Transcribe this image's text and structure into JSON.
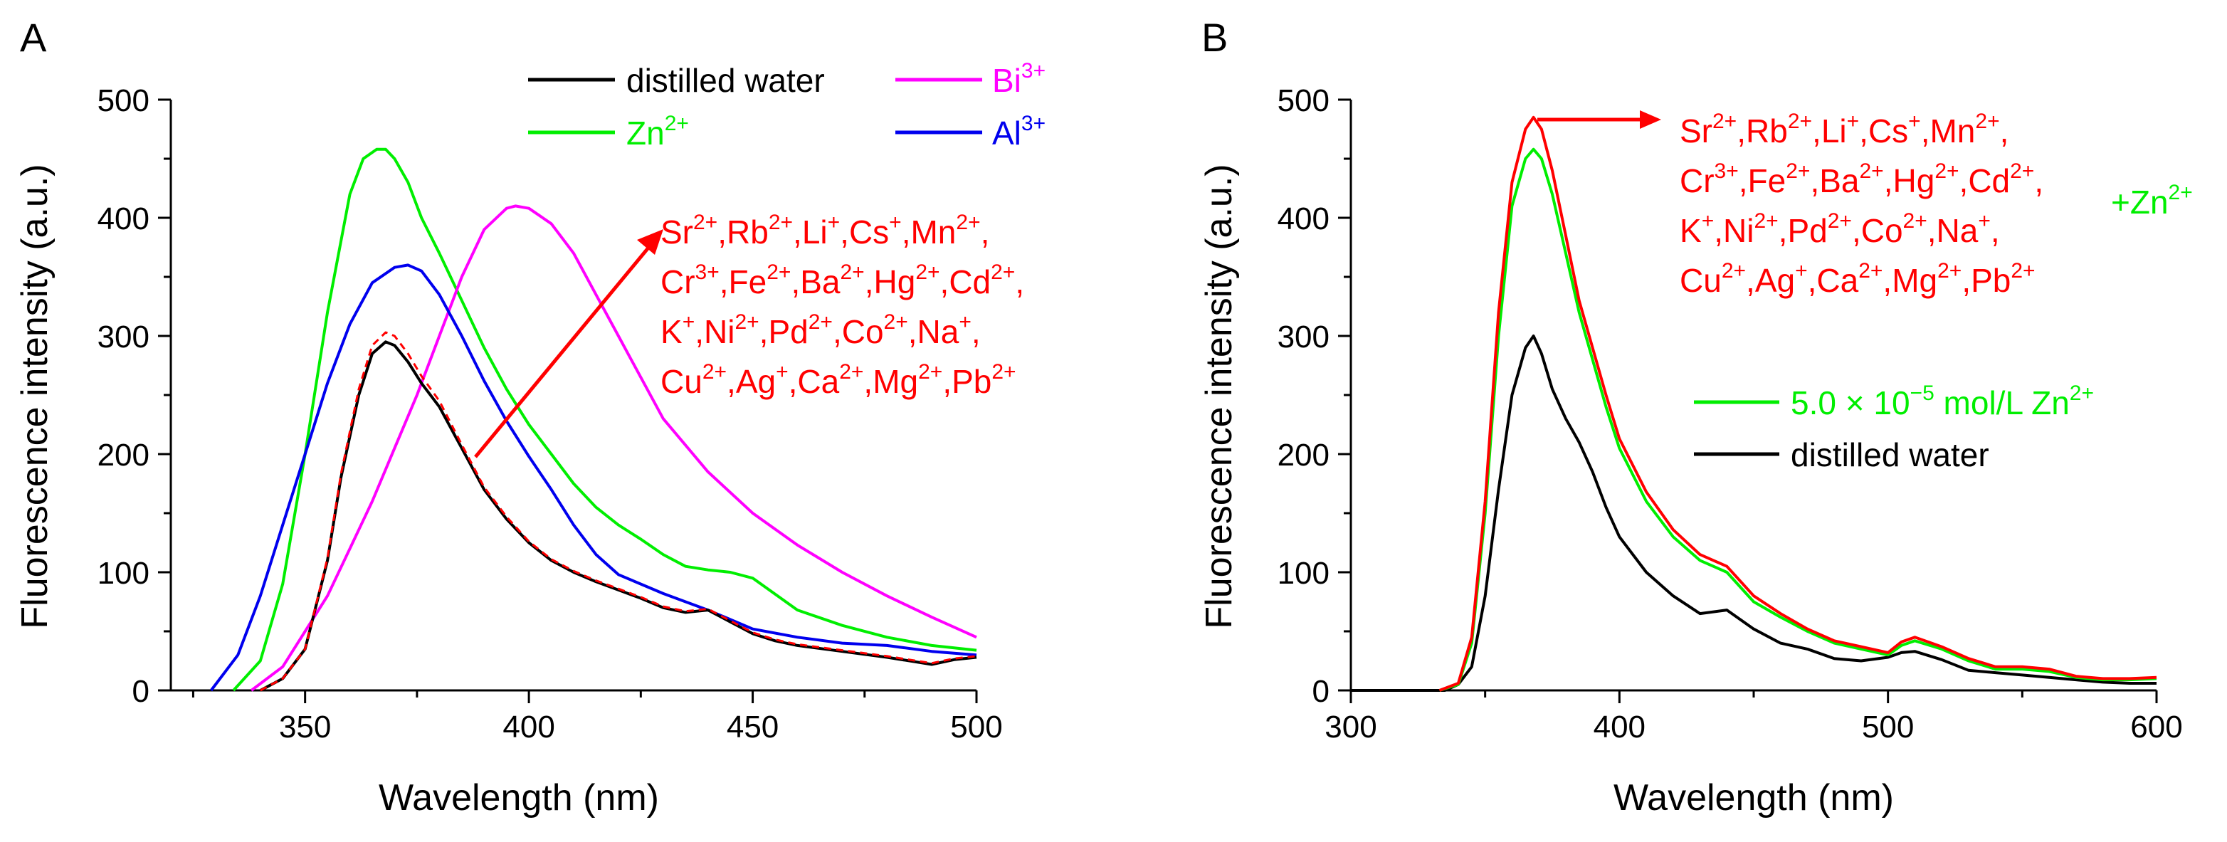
{
  "colors": {
    "water": "#000000",
    "zn": "#00ee00",
    "bi": "#ff00ff",
    "al": "#0000ee",
    "ions": "#ff0000",
    "axis": "#000000"
  },
  "chart_data": [
    {
      "panel": "A",
      "type": "line",
      "xlabel": "Wavelength (nm)",
      "ylabel": "Fluorescence intensity (a.u.)",
      "xlim": [
        320,
        500
      ],
      "ylim": [
        0,
        500
      ],
      "xticks": [
        350,
        400,
        450,
        500
      ],
      "yticks": [
        0,
        100,
        200,
        300,
        400,
        500
      ],
      "legend_placement": "top-right",
      "series": [
        {
          "key": "zn",
          "name": "Zn2+",
          "legend_base": "Zn",
          "legend_sup": "2+",
          "x": [
            334,
            340,
            345,
            350,
            355,
            360,
            363,
            366,
            368,
            370,
            373,
            376,
            380,
            385,
            390,
            395,
            400,
            405,
            410,
            415,
            420,
            425,
            430,
            435,
            440,
            445,
            450,
            460,
            470,
            480,
            490,
            500
          ],
          "y": [
            0,
            25,
            90,
            200,
            320,
            420,
            450,
            458,
            458,
            450,
            430,
            400,
            370,
            330,
            290,
            255,
            225,
            200,
            175,
            155,
            140,
            128,
            115,
            105,
            102,
            100,
            95,
            68,
            55,
            45,
            38,
            34
          ]
        },
        {
          "key": "bi",
          "name": "Bi3+",
          "legend_base": "Bi",
          "legend_sup": "3+",
          "x": [
            338,
            345,
            350,
            355,
            360,
            365,
            370,
            375,
            380,
            385,
            390,
            395,
            397,
            400,
            405,
            410,
            415,
            420,
            425,
            430,
            440,
            450,
            460,
            470,
            480,
            490,
            500
          ],
          "y": [
            0,
            20,
            50,
            80,
            120,
            160,
            205,
            250,
            300,
            350,
            390,
            408,
            410,
            408,
            395,
            370,
            335,
            300,
            265,
            230,
            185,
            150,
            123,
            100,
            80,
            62,
            45
          ]
        },
        {
          "key": "al",
          "name": "Al3+",
          "legend_base": "Al",
          "legend_sup": "3+",
          "x": [
            329,
            335,
            340,
            345,
            350,
            355,
            360,
            365,
            370,
            373,
            376,
            380,
            385,
            390,
            395,
            400,
            405,
            410,
            415,
            420,
            430,
            440,
            450,
            460,
            470,
            480,
            490,
            500
          ],
          "y": [
            0,
            30,
            80,
            140,
            200,
            260,
            310,
            345,
            358,
            360,
            355,
            335,
            300,
            262,
            228,
            198,
            170,
            140,
            115,
            98,
            82,
            68,
            52,
            45,
            40,
            38,
            33,
            30
          ]
        },
        {
          "key": "water",
          "name": "distilled water",
          "legend_base": "distilled water",
          "legend_sup": "",
          "x": [
            340,
            345,
            350,
            355,
            358,
            362,
            365,
            368,
            370,
            373,
            376,
            380,
            385,
            390,
            395,
            400,
            405,
            410,
            415,
            420,
            425,
            430,
            435,
            440,
            445,
            450,
            455,
            460,
            470,
            480,
            490,
            495,
            500
          ],
          "y": [
            0,
            10,
            35,
            110,
            180,
            250,
            285,
            295,
            292,
            278,
            260,
            240,
            205,
            170,
            145,
            125,
            110,
            100,
            92,
            85,
            78,
            70,
            66,
            68,
            58,
            48,
            42,
            38,
            33,
            28,
            22,
            26,
            28
          ]
        },
        {
          "key": "ions",
          "name": "other ions",
          "legend_base": "",
          "legend_sup": "",
          "dashed": true,
          "x": [
            340,
            345,
            350,
            355,
            358,
            362,
            365,
            368,
            370,
            373,
            376,
            380,
            385,
            390,
            395,
            400,
            405,
            410,
            415,
            420,
            425,
            430,
            435,
            440,
            445,
            450,
            455,
            460,
            470,
            480,
            490,
            495,
            500
          ],
          "y": [
            0,
            10,
            35,
            112,
            183,
            255,
            292,
            303,
            300,
            285,
            266,
            245,
            208,
            172,
            147,
            126,
            111,
            101,
            93,
            86,
            79,
            71,
            67,
            69,
            59,
            49,
            43,
            39,
            34,
            29,
            23,
            27,
            29
          ]
        }
      ],
      "ions_lines": [
        [
          {
            "b": "Sr",
            "s": "2+"
          },
          {
            "b": "Rb",
            "s": "2+"
          },
          {
            "b": "Li",
            "s": "+"
          },
          {
            "b": "Cs",
            "s": "+"
          },
          {
            "b": "Mn",
            "s": "2+"
          }
        ],
        [
          {
            "b": "Cr",
            "s": "3+"
          },
          {
            "b": "Fe",
            "s": "2+"
          },
          {
            "b": "Ba",
            "s": "2+"
          },
          {
            "b": "Hg",
            "s": "2+"
          },
          {
            "b": "Cd",
            "s": "2+"
          }
        ],
        [
          {
            "b": "K",
            "s": "+"
          },
          {
            "b": "Ni",
            "s": "2+"
          },
          {
            "b": "Pd",
            "s": "2+"
          },
          {
            "b": "Co",
            "s": "2+"
          },
          {
            "b": "Na",
            "s": "+"
          }
        ],
        [
          {
            "b": "Cu",
            "s": "2+"
          },
          {
            "b": "Ag",
            "s": "+"
          },
          {
            "b": "Ca",
            "s": "2+"
          },
          {
            "b": "Mg",
            "s": "2+"
          },
          {
            "b": "Pb",
            "s": "2+"
          }
        ]
      ]
    },
    {
      "panel": "B",
      "type": "line",
      "xlabel": "Wavelength (nm)",
      "ylabel": "Fluorescence intensity (a.u.)",
      "xlim": [
        300,
        600
      ],
      "ylim": [
        0,
        500
      ],
      "xticks": [
        300,
        400,
        500,
        600
      ],
      "yticks": [
        0,
        100,
        200,
        300,
        400,
        500
      ],
      "legend_placement": "center-right",
      "series": [
        {
          "key": "water",
          "name": "distilled water",
          "x": [
            300,
            320,
            335,
            340,
            345,
            350,
            355,
            360,
            365,
            368,
            371,
            375,
            380,
            385,
            390,
            395,
            400,
            410,
            420,
            430,
            440,
            450,
            460,
            470,
            480,
            490,
            500,
            505,
            510,
            520,
            530,
            540,
            550,
            560,
            570,
            580,
            590,
            600
          ],
          "y": [
            0,
            0,
            0,
            5,
            20,
            80,
            170,
            250,
            290,
            300,
            285,
            255,
            230,
            210,
            185,
            155,
            130,
            100,
            80,
            65,
            68,
            52,
            40,
            35,
            27,
            25,
            28,
            32,
            33,
            26,
            17,
            15,
            13,
            11,
            9,
            7,
            6,
            6
          ]
        },
        {
          "key": "zn",
          "name": "5.0 × 10-5 mol/L Zn2+",
          "x": [
            333,
            340,
            345,
            350,
            355,
            360,
            365,
            368,
            371,
            375,
            380,
            385,
            390,
            395,
            400,
            410,
            420,
            430,
            440,
            450,
            460,
            470,
            480,
            490,
            500,
            505,
            510,
            520,
            530,
            540,
            550,
            560,
            570,
            580,
            590,
            600
          ],
          "y": [
            0,
            5,
            40,
            150,
            300,
            410,
            450,
            458,
            450,
            420,
            370,
            320,
            280,
            240,
            205,
            160,
            130,
            110,
            100,
            75,
            62,
            50,
            40,
            35,
            30,
            38,
            42,
            35,
            25,
            18,
            18,
            16,
            11,
            9,
            9,
            10
          ]
        },
        {
          "key": "ions",
          "name": "other ions + Zn2+",
          "x": [
            333,
            340,
            345,
            350,
            355,
            360,
            365,
            368,
            371,
            375,
            380,
            385,
            390,
            395,
            400,
            410,
            420,
            430,
            440,
            450,
            460,
            470,
            480,
            490,
            500,
            505,
            510,
            520,
            530,
            540,
            550,
            560,
            570,
            580,
            590,
            600
          ],
          "y": [
            0,
            6,
            45,
            160,
            320,
            430,
            475,
            485,
            475,
            440,
            385,
            330,
            290,
            250,
            213,
            168,
            136,
            115,
            105,
            80,
            65,
            52,
            42,
            37,
            32,
            41,
            45,
            37,
            27,
            20,
            20,
            18,
            12,
            10,
            10,
            11
          ]
        }
      ],
      "ions_lines": [
        [
          {
            "b": "Sr",
            "s": "2+"
          },
          {
            "b": "Rb",
            "s": "2+"
          },
          {
            "b": "Li",
            "s": "+"
          },
          {
            "b": "Cs",
            "s": "+"
          },
          {
            "b": "Mn",
            "s": "2+"
          }
        ],
        [
          {
            "b": "Cr",
            "s": "3+"
          },
          {
            "b": "Fe",
            "s": "2+"
          },
          {
            "b": "Ba",
            "s": "2+"
          },
          {
            "b": "Hg",
            "s": "2+"
          },
          {
            "b": "Cd",
            "s": "2+"
          }
        ],
        [
          {
            "b": "K",
            "s": "+"
          },
          {
            "b": "Ni",
            "s": "2+"
          },
          {
            "b": "Pd",
            "s": "2+"
          },
          {
            "b": "Co",
            "s": "2+"
          },
          {
            "b": "Na",
            "s": "+"
          }
        ],
        [
          {
            "b": "Cu",
            "s": "2+"
          },
          {
            "b": "Ag",
            "s": "+"
          },
          {
            "b": "Ca",
            "s": "2+"
          },
          {
            "b": "Mg",
            "s": "2+"
          },
          {
            "b": "Pb",
            "s": "2+"
          }
        ]
      ],
      "plus_zn": {
        "base": "+Zn",
        "sup": "2+"
      },
      "legend": [
        {
          "key": "zn",
          "parts": [
            {
              "t": "5.0 × 10"
            },
            {
              "sup": "−5"
            },
            {
              "t": " mol/L Zn"
            },
            {
              "sup": "2+"
            }
          ]
        },
        {
          "key": "water",
          "parts": [
            {
              "t": "distilled water"
            }
          ]
        }
      ]
    }
  ]
}
